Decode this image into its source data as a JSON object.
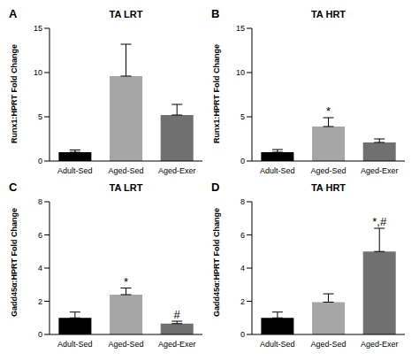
{
  "chart_data": [
    {
      "type": "bar",
      "panel": "A",
      "title": "TA LRT",
      "y_label": "Runx1:HPRT Fold Change",
      "categories": [
        "Adult-Sed",
        "Aged-Sed",
        "Aged-Exer"
      ],
      "values": [
        1.0,
        9.6,
        5.2
      ],
      "errors": [
        0.25,
        3.6,
        1.2
      ],
      "colors": [
        "#000000",
        "#a6a6a6",
        "#707070"
      ],
      "ylim": [
        0,
        15
      ],
      "yticks": [
        0,
        5,
        10,
        15
      ],
      "annotations": []
    },
    {
      "type": "bar",
      "panel": "B",
      "title": "TA HRT",
      "y_label": "Runx1:HPRT Fold Change",
      "categories": [
        "Adult-Sed",
        "Aged-Sed",
        "Aged-Exer"
      ],
      "values": [
        1.0,
        3.9,
        2.1
      ],
      "errors": [
        0.3,
        1.0,
        0.4
      ],
      "colors": [
        "#000000",
        "#a6a6a6",
        "#707070"
      ],
      "ylim": [
        0,
        15
      ],
      "yticks": [
        0,
        5,
        10,
        15
      ],
      "annotations": [
        {
          "category": "Aged-Sed",
          "text": "*"
        }
      ]
    },
    {
      "type": "bar",
      "panel": "C",
      "title": "TA LRT",
      "y_label": "Gadd45α:HPRT Fold Change",
      "categories": [
        "Adult-Sed",
        "Aged-Sed",
        "Aged-Exer"
      ],
      "values": [
        1.0,
        2.4,
        0.65
      ],
      "errors": [
        0.35,
        0.4,
        0.15
      ],
      "colors": [
        "#000000",
        "#a6a6a6",
        "#707070"
      ],
      "ylim": [
        0,
        8
      ],
      "yticks": [
        0,
        2,
        4,
        6,
        8
      ],
      "annotations": [
        {
          "category": "Aged-Sed",
          "text": "*"
        },
        {
          "category": "Aged-Exer",
          "text": "#"
        }
      ]
    },
    {
      "type": "bar",
      "panel": "D",
      "title": "TA HRT",
      "y_label": "Gadd45α:HPRT Fold Change",
      "categories": [
        "Adult-Sed",
        "Aged-Sed",
        "Aged-Exer"
      ],
      "values": [
        1.0,
        1.95,
        5.0
      ],
      "errors": [
        0.35,
        0.5,
        1.4
      ],
      "colors": [
        "#000000",
        "#a6a6a6",
        "#707070"
      ],
      "ylim": [
        0,
        8
      ],
      "yticks": [
        0,
        2,
        4,
        6,
        8
      ],
      "annotations": [
        {
          "category": "Aged-Exer",
          "text": "*,#"
        }
      ]
    }
  ]
}
